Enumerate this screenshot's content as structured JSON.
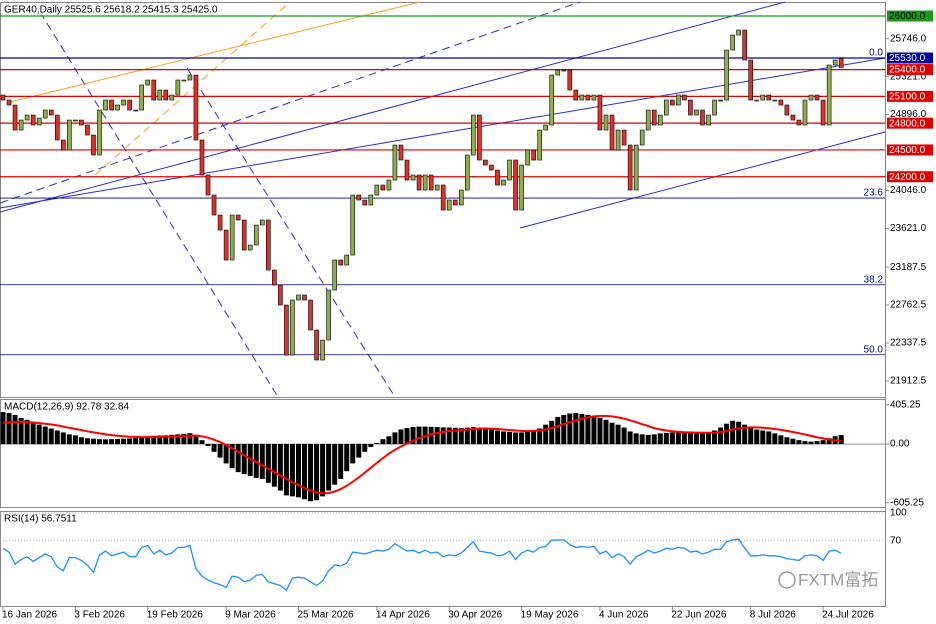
{
  "chart_data": [
    {
      "type": "candlestick",
      "title": "GER40,Daily 25525.6 25618.2 25415.3 25425.0",
      "categories": [
        "16 Jan 2026",
        null,
        null,
        null,
        null,
        null,
        null,
        null,
        null,
        null,
        null,
        null,
        "3 Feb 2026",
        null,
        null,
        null,
        null,
        null,
        null,
        null,
        null,
        null,
        null,
        null,
        "19 Feb 2026",
        null,
        null,
        null,
        null,
        null,
        null,
        null,
        null,
        null,
        null,
        null,
        null,
        "9 Mar 2026",
        null,
        null,
        null,
        null,
        null,
        null,
        null,
        null,
        null,
        null,
        null,
        "25 Mar 2026",
        null,
        null,
        null,
        null,
        null,
        null,
        null,
        null,
        null,
        null,
        null,
        null,
        "14 Apr 2026",
        null,
        null,
        null,
        null,
        null,
        null,
        null,
        null,
        null,
        null,
        null,
        "30 Apr 2026",
        null,
        null,
        null,
        null,
        null,
        null,
        null,
        null,
        null,
        null,
        null,
        "19 May 2026",
        null,
        null,
        null,
        null,
        null,
        null,
        null,
        null,
        null,
        null,
        null,
        null,
        "4 Jun 2026",
        null,
        null,
        null,
        null,
        null,
        null,
        null,
        null,
        null,
        null,
        null,
        "22 Jun 2026",
        null,
        null,
        null,
        null,
        null,
        null,
        null,
        null,
        null,
        null,
        null,
        null,
        "8 Jul 2026",
        null,
        null,
        null,
        null,
        null,
        null,
        null,
        null,
        null,
        null,
        null,
        "24 Jul 2026",
        null,
        null,
        null
      ],
      "open": [
        25115,
        25059,
        25003,
        24723,
        24835,
        24891,
        24779,
        24857,
        24947,
        24891,
        24611,
        24499,
        24835,
        24835,
        24779,
        24667,
        24443,
        24947,
        25059,
        24947,
        25003,
        25059,
        24947,
        24947,
        25227,
        25283,
        25059,
        25171,
        25059,
        25115,
        25283,
        25283,
        25339,
        24611,
        24219,
        23995,
        23771,
        23603,
        23267,
        23771,
        23715,
        23379,
        23435,
        23659,
        23715,
        23155,
        22987,
        22763,
        22203,
        22819,
        22875,
        22819,
        22483,
        22147,
        22371,
        22931,
        23267,
        23211,
        23323,
        23995,
        23939,
        23883,
        23995,
        24107,
        24051,
        24163,
        24555,
        24387,
        24163,
        24219,
        24051,
        24219,
        24051,
        24107,
        23827,
        23939,
        23883,
        24051,
        24443,
        24891,
        24387,
        24331,
        24275,
        24107,
        24163,
        24387,
        23827,
        24331,
        24499,
        24387,
        24723,
        24779,
        25339,
        25395,
        25395,
        25171,
        25059,
        25115,
        25059,
        25115,
        24723,
        24891,
        24499,
        24723,
        24555,
        24051,
        24555,
        24723,
        24947,
        24779,
        24891,
        25059,
        25003,
        25115,
        25059,
        24891,
        24947,
        24779,
        24891,
        25059,
        25059,
        25619,
        25787,
        25843,
        25507,
        25059,
        25059,
        25115,
        25059,
        25059,
        25003,
        24891,
        24835,
        24779,
        25059,
        25115,
        25059,
        24779,
        25451,
        25525.6
      ],
      "close": [
        25059,
        25003,
        24723,
        24835,
        24891,
        24779,
        24857,
        24947,
        24891,
        24611,
        24499,
        24835,
        24835,
        24779,
        24667,
        24443,
        24947,
        25059,
        24947,
        25003,
        25059,
        24947,
        24947,
        25227,
        25283,
        25059,
        25171,
        25059,
        25115,
        25283,
        25283,
        25339,
        24611,
        24219,
        23995,
        23771,
        23603,
        23267,
        23771,
        23715,
        23379,
        23435,
        23659,
        23715,
        23155,
        22987,
        22763,
        22203,
        22819,
        22875,
        22819,
        22483,
        22147,
        22371,
        22931,
        23267,
        23211,
        23323,
        23995,
        23939,
        23883,
        23995,
        24107,
        24051,
        24163,
        24555,
        24387,
        24163,
        24219,
        24051,
        24219,
        24051,
        24107,
        23827,
        23939,
        23883,
        24051,
        24443,
        24891,
        24387,
        24331,
        24275,
        24107,
        24163,
        24387,
        23827,
        24331,
        24499,
        24387,
        24723,
        24779,
        25339,
        25395,
        25395,
        25171,
        25059,
        25115,
        25059,
        25115,
        24723,
        24891,
        24499,
        24723,
        24555,
        24051,
        24555,
        24723,
        24947,
        24779,
        24891,
        25059,
        25003,
        25115,
        25059,
        24891,
        24947,
        24779,
        24891,
        25059,
        25059,
        25619,
        25787,
        25843,
        25507,
        25059,
        25059,
        25115,
        25059,
        25059,
        25003,
        24891,
        24835,
        24779,
        25059,
        25115,
        25059,
        24779,
        25451,
        25507,
        25425.0
      ],
      "colors": {
        "up": "#8fae4e",
        "down": "#e0302a",
        "outline": "#000000"
      },
      "ylim": [
        21733,
        26157
      ],
      "yticks": [
        {
          "value": 25746,
          "label": "25746.0"
        },
        {
          "value": 25321,
          "label": "25321.0"
        },
        {
          "value": 24896,
          "label": "24896.0"
        },
        {
          "value": 24046,
          "label": "24046.0"
        },
        {
          "value": 23621,
          "label": "23621.0"
        },
        {
          "value": 23187.5,
          "label": "23187.5"
        },
        {
          "value": 22762.5,
          "label": "22762.5"
        },
        {
          "value": 22337.5,
          "label": "22337.5"
        },
        {
          "value": 21912.5,
          "label": "21912.5"
        }
      ],
      "levels": [
        {
          "value": 26000,
          "label": "26000.0",
          "color": "#1a9a1a",
          "text_color": "#000000"
        },
        {
          "value": 25530,
          "label": "25530.0",
          "color": "#0000a0",
          "text_color": "#ffffff"
        },
        {
          "value": 25400,
          "label": "25400.0",
          "color": "#e00000",
          "text_color": "#ffffff"
        },
        {
          "value": 25100,
          "label": "25100.0",
          "color": "#e00000",
          "text_color": "#ffffff"
        },
        {
          "value": 24800,
          "label": "24800.0",
          "color": "#e00000",
          "text_color": "#ffffff"
        },
        {
          "value": 24500,
          "label": "24500.0",
          "color": "#e00000",
          "text_color": "#ffffff"
        },
        {
          "value": 24200,
          "label": "24200.0",
          "color": "#e00000",
          "text_color": "#ffffff"
        }
      ],
      "fib_levels": [
        {
          "value": 25530,
          "label": "0.0"
        },
        {
          "value": 23961,
          "label": "23.6"
        },
        {
          "value": 22990,
          "label": "38.2"
        },
        {
          "value": 22206,
          "label": "50.0"
        }
      ],
      "fib_color": "#000080"
    },
    {
      "type": "macd",
      "title": "MACD(12,26,9) 92.78 32.84",
      "histogram": {
        "color": "#000000",
        "values": [
          330,
          320,
          300,
          270,
          250,
          230,
          200,
          180,
          160,
          140,
          120,
          100,
          90,
          70,
          60,
          55,
          50,
          48,
          50,
          52,
          55,
          58,
          62,
          70,
          80,
          85,
          88,
          90,
          95,
          100,
          105,
          112,
          90,
          40,
          -20,
          -80,
          -140,
          -200,
          -250,
          -290,
          -310,
          -330,
          -350,
          -360,
          -400,
          -440,
          -480,
          -530,
          -540,
          -550,
          -570,
          -590,
          -580,
          -540,
          -480,
          -420,
          -360,
          -280,
          -200,
          -140,
          -80,
          -30,
          10,
          50,
          80,
          120,
          150,
          165,
          175,
          180,
          180,
          178,
          175,
          172,
          170,
          168,
          165,
          170,
          175,
          170,
          160,
          150,
          140,
          130,
          125,
          120,
          120,
          125,
          140,
          160,
          200,
          240,
          280,
          300,
          315,
          320,
          310,
          300,
          290,
          270,
          250,
          220,
          200,
          170,
          130,
          110,
          100,
          95,
          100,
          110,
          115,
          120,
          120,
          118,
          115,
          112,
          110,
          115,
          140,
          170,
          210,
          240,
          230,
          200,
          170,
          150,
          140,
          130,
          110,
          90,
          70,
          55,
          40,
          30,
          25,
          30,
          40,
          60,
          80,
          92.78
        ]
      },
      "signal": {
        "color": "#ff0000",
        "values": [
          220,
          225,
          228,
          228,
          226,
          222,
          216,
          210,
          202,
          192,
          180,
          168,
          156,
          144,
          132,
          120,
          110,
          100,
          92,
          86,
          80,
          76,
          74,
          72,
          72,
          73,
          74,
          76,
          78,
          80,
          82,
          86,
          88,
          80,
          65,
          45,
          20,
          -10,
          -45,
          -80,
          -115,
          -150,
          -185,
          -220,
          -255,
          -290,
          -325,
          -360,
          -395,
          -425,
          -455,
          -480,
          -500,
          -510,
          -505,
          -490,
          -465,
          -430,
          -390,
          -345,
          -295,
          -245,
          -195,
          -145,
          -100,
          -60,
          -25,
          5,
          35,
          60,
          80,
          100,
          115,
          125,
          135,
          140,
          145,
          150,
          155,
          158,
          160,
          158,
          155,
          150,
          145,
          140,
          136,
          134,
          136,
          140,
          150,
          165,
          185,
          205,
          225,
          245,
          262,
          275,
          285,
          290,
          290,
          285,
          275,
          262,
          245,
          225,
          205,
          185,
          165,
          150,
          140,
          132,
          126,
          122,
          120,
          118,
          117,
          116,
          118,
          124,
          135,
          148,
          160,
          168,
          172,
          172,
          168,
          162,
          155,
          146,
          136,
          124,
          112,
          98,
          84,
          70,
          58,
          46,
          38,
          32.84
        ]
      },
      "ylim": [
        -650,
        465
      ],
      "yticks": [
        405.25,
        {
          "value": 0,
          "label": "0.00"
        },
        -605.25
      ]
    },
    {
      "type": "line",
      "title": "RSI(14) 56.7511",
      "color": "#1e8fff",
      "values": [
        62,
        58,
        45,
        50,
        53,
        48,
        52,
        56,
        53,
        42,
        38,
        52,
        52,
        49,
        44,
        36,
        55,
        59,
        54,
        56,
        58,
        53,
        53,
        63,
        65,
        56,
        60,
        55,
        57,
        63,
        63,
        65,
        40,
        32,
        28,
        25,
        23,
        20,
        32,
        31,
        26,
        28,
        33,
        34,
        26,
        24,
        22,
        17,
        30,
        31,
        30,
        26,
        22,
        27,
        38,
        44,
        43,
        46,
        58,
        57,
        56,
        58,
        60,
        59,
        61,
        67,
        63,
        59,
        60,
        57,
        60,
        57,
        58,
        53,
        55,
        54,
        57,
        63,
        69,
        59,
        58,
        57,
        54,
        55,
        59,
        50,
        57,
        60,
        58,
        63,
        64,
        71,
        71,
        71,
        66,
        63,
        64,
        63,
        64,
        56,
        59,
        52,
        56,
        53,
        45,
        53,
        56,
        60,
        57,
        59,
        62,
        61,
        63,
        62,
        58,
        59,
        56,
        58,
        61,
        61,
        69,
        71,
        72,
        62,
        54,
        54,
        55,
        54,
        54,
        53,
        51,
        50,
        49,
        54,
        55,
        54,
        49,
        59,
        60,
        56.7511
      ],
      "ylim": [
        0,
        100
      ],
      "yticks": [
        100,
        70
      ]
    }
  ],
  "watermark": "FXTM富拓"
}
